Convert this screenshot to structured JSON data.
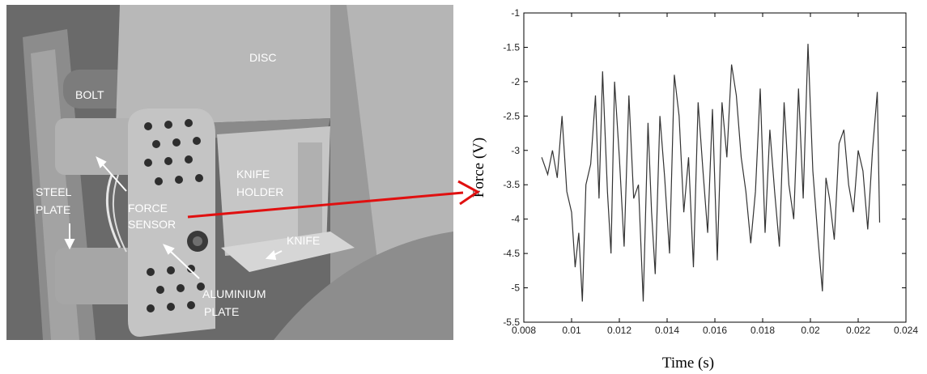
{
  "photo": {
    "labels": {
      "bolt": "BOLT",
      "disc": "DISC",
      "knife_holder_1": "KNIFE",
      "knife_holder_2": "HOLDER",
      "steel_plate_1": "STEEL",
      "steel_plate_2": "PLATE",
      "force_sensor_1": "FORCE",
      "force_sensor_2": "SENSOR",
      "knife": "KNIFE",
      "aluminium_plate_1": "ALUMINIUM",
      "aluminium_plate_2": "PLATE"
    }
  },
  "colors": {
    "arrow": "#e01010",
    "signal": "#333333"
  },
  "chart_data": {
    "type": "line",
    "title": "",
    "xlabel": "Time (s)",
    "ylabel": "Force (V)",
    "xlim": [
      0.008,
      0.024
    ],
    "ylim": [
      -5.5,
      -1
    ],
    "xticks": [
      "0.008",
      "0.01",
      "0.012",
      "0.014",
      "0.016",
      "0.018",
      "0.02",
      "0.022",
      "0.024"
    ],
    "yticks": [
      "-1",
      "-1.5",
      "-2",
      "-2.5",
      "-3",
      "-3.5",
      "-4",
      "-4.5",
      "-5",
      "-5.5"
    ],
    "grid": false,
    "series": [
      {
        "x": [
          0.00875,
          0.009,
          0.0092,
          0.0094,
          0.0096,
          0.0098,
          0.01,
          0.01015,
          0.0103,
          0.01045,
          0.0106,
          0.0108,
          0.011,
          0.01115,
          0.0113,
          0.0115,
          0.01165,
          0.0118,
          0.012,
          0.0122,
          0.0124,
          0.0126,
          0.0128,
          0.013,
          0.0132,
          0.01335,
          0.0135,
          0.0137,
          0.0139,
          0.0141,
          0.0143,
          0.0145,
          0.0147,
          0.0149,
          0.0151,
          0.0153,
          0.0155,
          0.0157,
          0.0159,
          0.0161,
          0.0163,
          0.0165,
          0.0167,
          0.0169,
          0.0171,
          0.0173,
          0.0175,
          0.0177,
          0.0179,
          0.0181,
          0.0183,
          0.0185,
          0.0187,
          0.0189,
          0.0191,
          0.0193,
          0.0195,
          0.0197,
          0.0199,
          0.0201,
          0.0203,
          0.0205,
          0.02065,
          0.0208,
          0.021,
          0.0212,
          0.0214,
          0.0216,
          0.0218,
          0.022,
          0.0222,
          0.0224,
          0.0226,
          0.0228,
          0.0229
        ],
        "y": [
          -3.1,
          -3.35,
          -3.0,
          -3.4,
          -2.5,
          -3.6,
          -3.9,
          -4.7,
          -4.2,
          -5.2,
          -3.5,
          -3.2,
          -2.2,
          -3.7,
          -1.85,
          -3.6,
          -4.5,
          -2.0,
          -3.1,
          -4.4,
          -2.2,
          -3.7,
          -3.5,
          -5.2,
          -2.6,
          -3.9,
          -4.8,
          -2.5,
          -3.4,
          -4.5,
          -1.9,
          -2.5,
          -3.9,
          -3.1,
          -4.7,
          -2.3,
          -3.3,
          -4.2,
          -2.4,
          -4.6,
          -2.3,
          -3.1,
          -1.75,
          -2.2,
          -3.1,
          -3.6,
          -4.35,
          -3.6,
          -2.1,
          -4.2,
          -2.7,
          -3.6,
          -4.4,
          -2.3,
          -3.5,
          -4.0,
          -2.1,
          -3.7,
          -1.45,
          -3.3,
          -4.2,
          -5.05,
          -3.4,
          -3.7,
          -4.3,
          -2.9,
          -2.7,
          -3.5,
          -3.9,
          -3.0,
          -3.3,
          -4.15,
          -3.0,
          -2.15,
          -4.05
        ]
      }
    ]
  }
}
